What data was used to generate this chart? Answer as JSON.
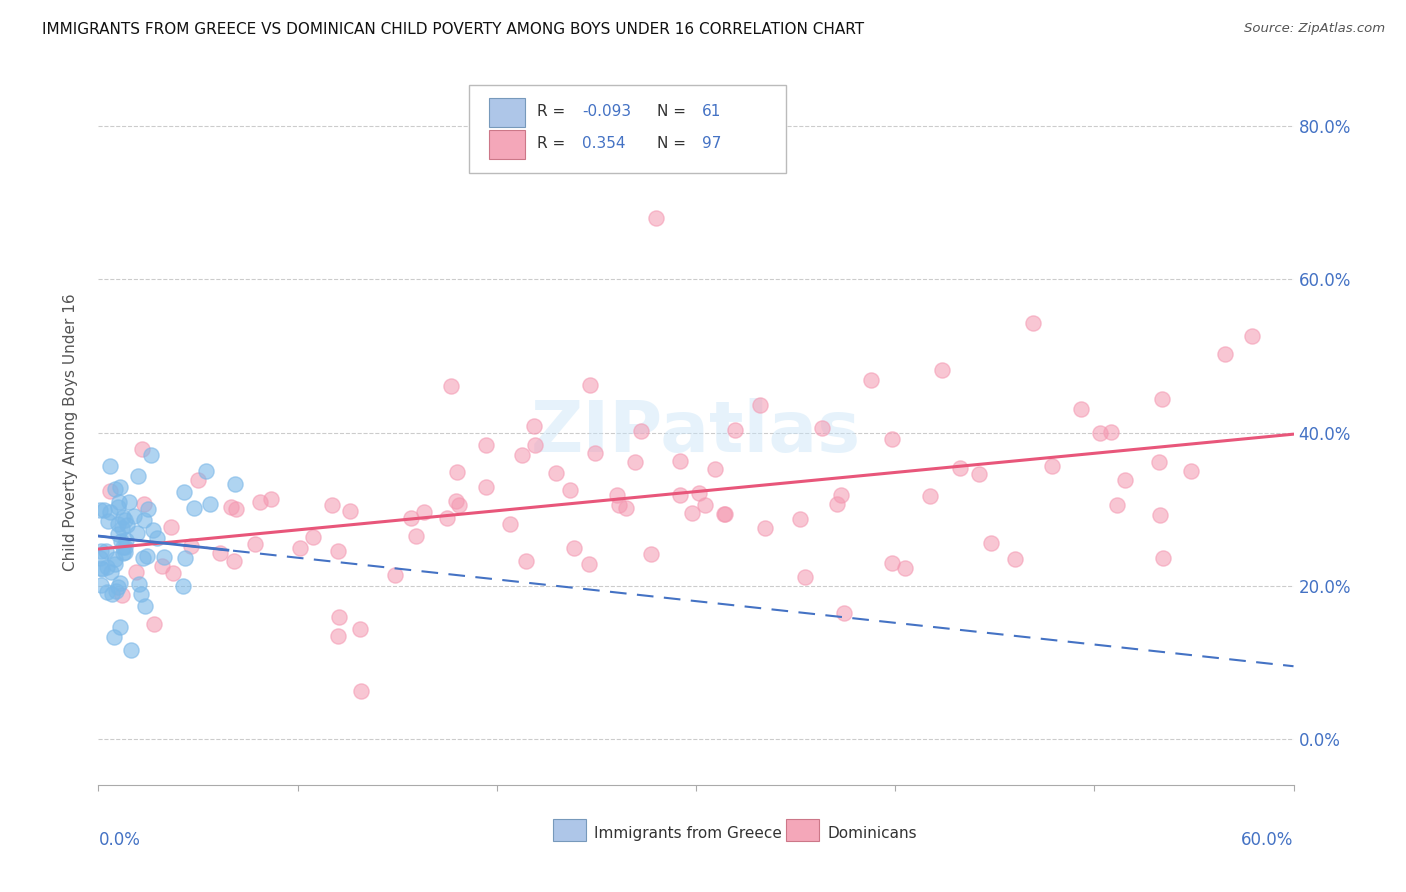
{
  "title": "IMMIGRANTS FROM GREECE VS DOMINICAN CHILD POVERTY AMONG BOYS UNDER 16 CORRELATION CHART",
  "source": "Source: ZipAtlas.com",
  "ylabel": "Child Poverty Among Boys Under 16",
  "ytick_vals": [
    0.0,
    0.2,
    0.4,
    0.6,
    0.8
  ],
  "ytick_labels": [
    "0.0%",
    "20.0%",
    "40.0%",
    "60.0%",
    "80.0%"
  ],
  "xmin": 0.0,
  "xmax": 0.6,
  "ymin": -0.06,
  "ymax": 0.86,
  "watermark": "ZIPatlas",
  "greece_color": "#7bb8e8",
  "dominican_color": "#f497b0",
  "greece_line_color": "#4472c4",
  "dominican_line_color": "#e8567a",
  "legend_box_color": "#aec6e8",
  "legend_box_color2": "#f4a7b9",
  "text_color_blue": "#4472c4",
  "text_color_dark": "#333333",
  "legend_label1": "R = -0.093  N = 61",
  "legend_label2": "R =  0.354  N = 97",
  "bottom_label1": "Immigrants from Greece",
  "bottom_label2": "Dominicans",
  "greek_trend_x": [
    0.0,
    0.6
  ],
  "greek_trend_y": [
    0.265,
    0.095
  ],
  "dominican_trend_x": [
    0.0,
    0.6
  ],
  "dominican_trend_y": [
    0.248,
    0.398
  ]
}
